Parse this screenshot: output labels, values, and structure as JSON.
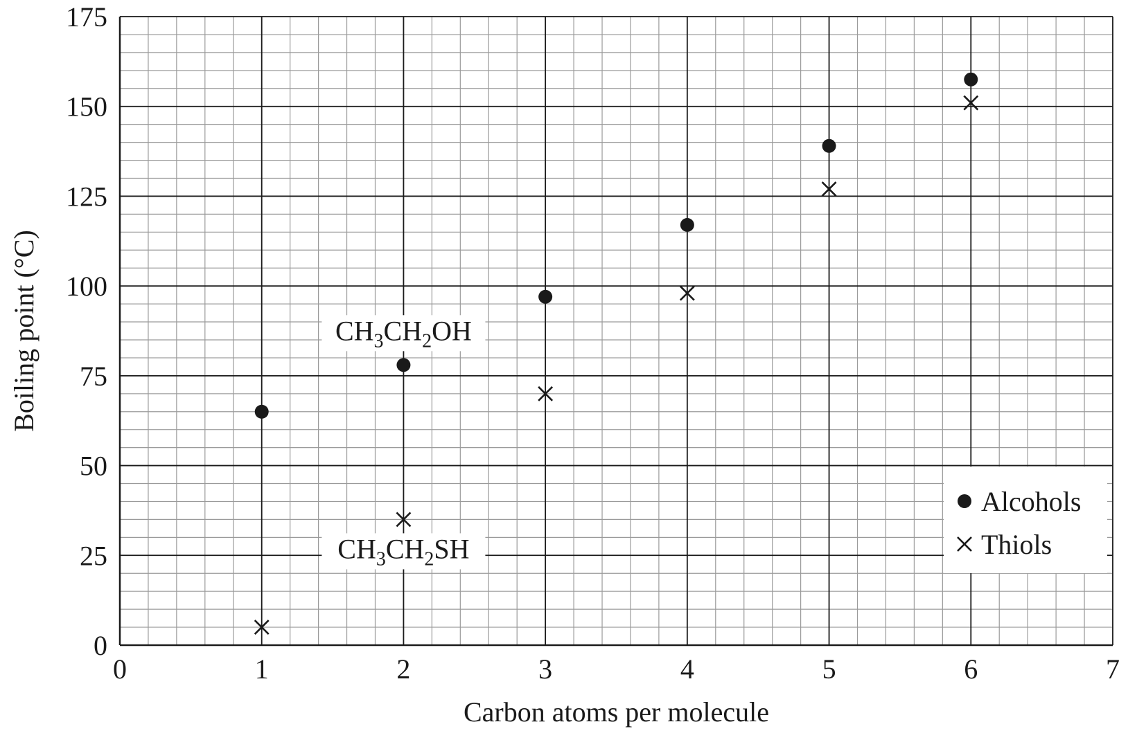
{
  "chart_data": {
    "type": "scatter",
    "title": "",
    "xlabel": "Carbon atoms per molecule",
    "ylabel": "Boiling point (°C)",
    "xlim": [
      0,
      7
    ],
    "ylim": [
      0,
      175
    ],
    "x_ticks": [
      "0",
      "1",
      "2",
      "3",
      "4",
      "5",
      "6",
      "7"
    ],
    "y_ticks": [
      "0",
      "25",
      "50",
      "75",
      "100",
      "125",
      "150",
      "175"
    ],
    "x_minor_step": 0.2,
    "y_minor_step": 5,
    "grid": true,
    "legend_position": "bottom-right",
    "series": [
      {
        "name": "Alcohols",
        "marker": "dot",
        "color": "#1a1a1a",
        "x": [
          1,
          2,
          3,
          4,
          5,
          6
        ],
        "y": [
          65,
          78,
          97,
          117,
          139,
          157.5
        ]
      },
      {
        "name": "Thiols",
        "marker": "cross",
        "color": "#1a1a1a",
        "x": [
          1,
          2,
          3,
          4,
          5,
          6
        ],
        "y": [
          5,
          35,
          70,
          98,
          127,
          151
        ]
      }
    ],
    "annotations": [
      {
        "parts": [
          "CH",
          "3",
          "CH",
          "2",
          "OH"
        ],
        "x": 2,
        "y": 78,
        "placement": "above"
      },
      {
        "parts": [
          "CH",
          "3",
          "CH",
          "2",
          "SH"
        ],
        "x": 2,
        "y": 35,
        "placement": "below"
      }
    ]
  }
}
